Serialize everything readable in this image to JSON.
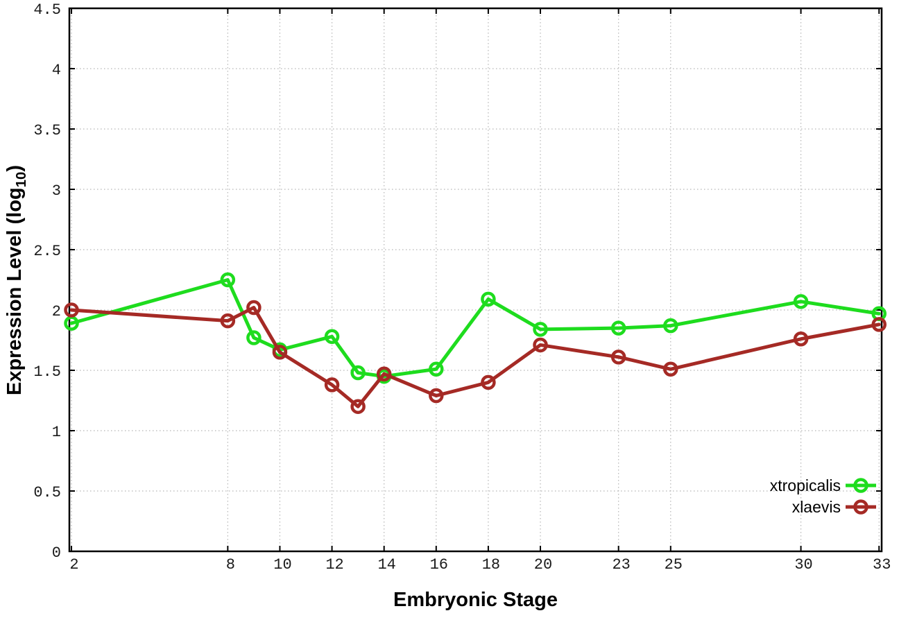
{
  "chart_data": {
    "type": "line",
    "title": "",
    "xlabel": "Embryonic Stage",
    "ylabel": "Expression Level (log10)",
    "ylabel_parts": {
      "main": "Expression Level (log",
      "sub": "10",
      "close": ")"
    },
    "xlim": [
      1.92,
      33.1
    ],
    "ylim": [
      0,
      4.5
    ],
    "grid": true,
    "legend_position": "inside-bottom-right",
    "x_ticks": [
      {
        "value": 2,
        "label": "2"
      },
      {
        "value": 8,
        "label": "8"
      },
      {
        "value": 10,
        "label": "10"
      },
      {
        "value": 12,
        "label": "12"
      },
      {
        "value": 14,
        "label": "14"
      },
      {
        "value": 16,
        "label": "16"
      },
      {
        "value": 18,
        "label": "18"
      },
      {
        "value": 20,
        "label": "20"
      },
      {
        "value": 23,
        "label": "23"
      },
      {
        "value": 25,
        "label": "25"
      },
      {
        "value": 30,
        "label": "30"
      },
      {
        "value": 33,
        "label": "33"
      }
    ],
    "y_ticks": [
      {
        "value": 0,
        "label": "0"
      },
      {
        "value": 0.5,
        "label": "0.5"
      },
      {
        "value": 1,
        "label": "1"
      },
      {
        "value": 1.5,
        "label": "1.5"
      },
      {
        "value": 2,
        "label": "2"
      },
      {
        "value": 2.5,
        "label": "2.5"
      },
      {
        "value": 3,
        "label": "3"
      },
      {
        "value": 3.5,
        "label": "3.5"
      },
      {
        "value": 4,
        "label": "4"
      },
      {
        "value": 4.5,
        "label": "4.5"
      }
    ],
    "x": [
      2,
      8,
      9,
      10,
      12,
      13,
      14,
      16,
      18,
      20,
      23,
      25,
      30,
      33
    ],
    "series": [
      {
        "name": "xtropicalis",
        "color": "#1edc1e",
        "values": [
          1.89,
          2.25,
          1.77,
          1.67,
          1.78,
          1.48,
          1.45,
          1.51,
          2.09,
          1.84,
          1.85,
          1.87,
          2.07,
          1.97
        ]
      },
      {
        "name": "xlaevis",
        "color": "#a52a25",
        "values": [
          2.0,
          1.91,
          2.02,
          1.65,
          1.38,
          1.2,
          1.47,
          1.29,
          1.4,
          1.71,
          1.61,
          1.51,
          1.76,
          1.88
        ]
      }
    ],
    "style": {
      "grid_color": "#b5b5b5",
      "axis_color": "#000000",
      "tick_label_color": "#1a1a1a"
    }
  }
}
